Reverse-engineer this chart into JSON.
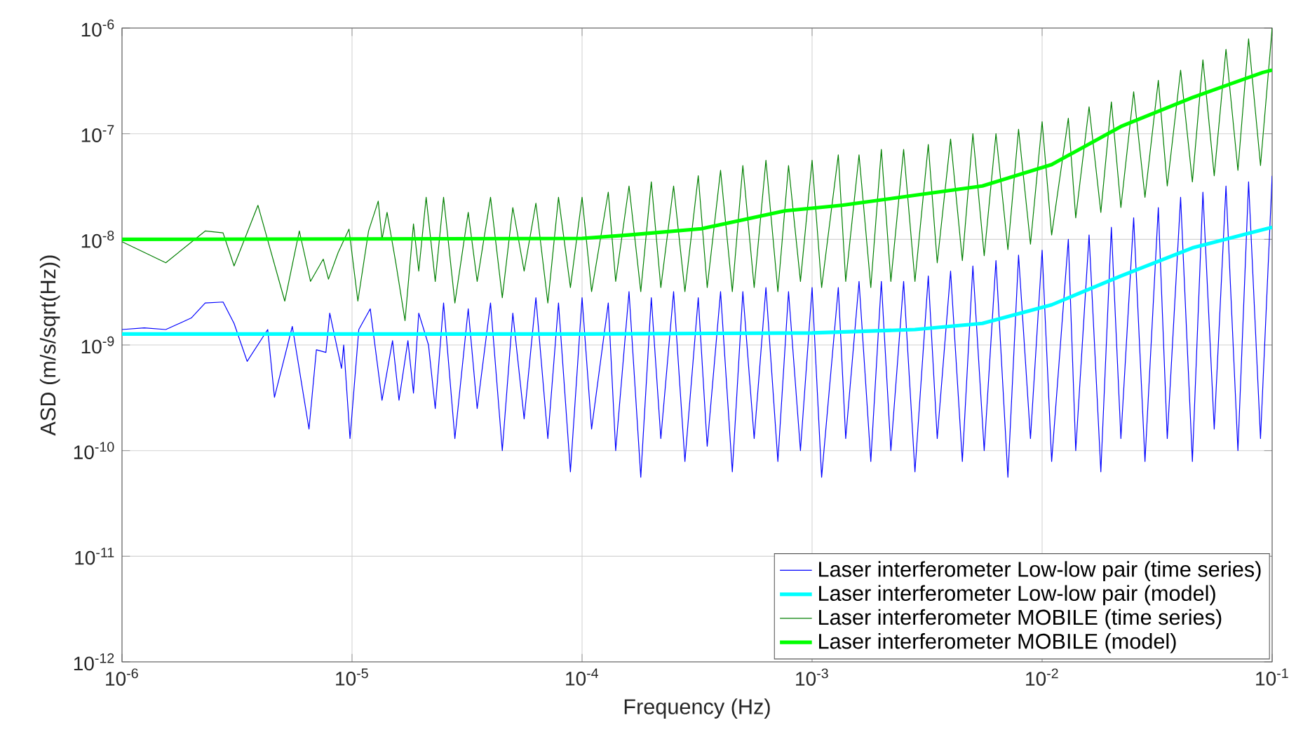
{
  "chart_data": {
    "type": "line",
    "xlabel": "Frequency (Hz)",
    "ylabel": "ASD (m/s/sqrt(Hz))",
    "log": "xy",
    "grid": true,
    "legend": "bottom right",
    "xlim": [
      1e-06,
      0.1
    ],
    "ylim": [
      1e-12,
      1e-06
    ],
    "xticks": [
      {
        "value": 1e-06,
        "label": "10$^{-6}$"
      },
      {
        "value": 1e-05,
        "label": "10$^{-5}$"
      },
      {
        "value": 0.0001,
        "label": "10$^{-4}$"
      },
      {
        "value": 0.001,
        "label": "10$^{-3}$"
      },
      {
        "value": 0.01,
        "label": "10$^{-2}$"
      },
      {
        "value": 0.1,
        "label": "10$^{-1}$"
      }
    ],
    "yticks": [
      {
        "value": 1e-12,
        "label": "10$^{-12}$"
      },
      {
        "value": 1e-11,
        "label": "10$^{-11}$"
      },
      {
        "value": 1e-10,
        "label": "10$^{-10}$"
      },
      {
        "value": 1e-09,
        "label": "10$^{-9}$"
      },
      {
        "value": 1e-08,
        "label": "10$^{-8}$"
      },
      {
        "value": 1e-07,
        "label": "10$^{-7}$"
      },
      {
        "value": 1e-06,
        "label": "10$^{-6}$"
      }
    ],
    "series": [
      {
        "name": "Laser interferometer Low-low pair (time series)",
        "color": "#0000ff",
        "x": [
          1e-06,
          1.25e-06,
          1.55e-06,
          2e-06,
          2.3e-06,
          2.75e-06,
          3.07e-06,
          3.5e-06,
          4.3e-06,
          4.6e-06,
          5.5e-06,
          6.5e-06,
          7e-06,
          7.7e-06,
          8e-06,
          9e-06,
          9.2e-06,
          9.8e-06,
          1.07e-05,
          1.2e-05,
          1.35e-05,
          1.5e-05,
          1.6e-05,
          1.75e-05,
          1.85e-05,
          1.95e-05,
          2.15e-05,
          2.3e-05,
          2.5e-05,
          2.8e-05,
          3.2e-05,
          3.5e-05,
          4e-05,
          4.5e-05,
          5e-05,
          5.6e-05,
          6.3e-05,
          7.1e-05,
          7.9e-05,
          8.9e-05,
          0.0001,
          0.00011,
          0.00013,
          0.00014,
          0.00016,
          0.00018,
          0.0002,
          0.00022,
          0.00025,
          0.00028,
          0.00032,
          0.00035,
          0.0004,
          0.00045,
          0.0005,
          0.00056,
          0.00063,
          0.00071,
          0.00079,
          0.00089,
          0.001,
          0.0011,
          0.0013,
          0.0014,
          0.0016,
          0.0018,
          0.002,
          0.0022,
          0.0025,
          0.0028,
          0.0032,
          0.0035,
          0.004,
          0.0045,
          0.005,
          0.0056,
          0.0063,
          0.0071,
          0.0079,
          0.0089,
          0.01,
          0.011,
          0.013,
          0.014,
          0.016,
          0.018,
          0.02,
          0.022,
          0.025,
          0.028,
          0.032,
          0.035,
          0.04,
          0.045,
          0.05,
          0.056,
          0.063,
          0.071,
          0.079,
          0.089,
          0.1
        ],
        "values": [
          1.4e-09,
          1.45e-09,
          1.4e-09,
          1.8e-09,
          2.5e-09,
          2.55e-09,
          1.6e-09,
          7e-10,
          1.4e-09,
          3.2e-10,
          1.5e-09,
          1.6e-10,
          9e-10,
          8.5e-10,
          2e-09,
          6e-10,
          1e-09,
          1.3e-10,
          1.4e-09,
          2.2e-09,
          3e-10,
          1.1e-09,
          3e-10,
          1.1e-09,
          3.5e-10,
          2e-09,
          1e-09,
          2.5e-10,
          2.5e-09,
          1.3e-10,
          2.2e-09,
          2.5e-10,
          2.5e-09,
          1e-10,
          2e-09,
          2e-10,
          2.8e-09,
          1.3e-10,
          2.5e-09,
          6.3e-11,
          2.8e-09,
          1.6e-10,
          2.5e-09,
          1e-10,
          3.2e-09,
          5.6e-11,
          2.8e-09,
          1.3e-10,
          3.2e-09,
          7.9e-11,
          2.8e-09,
          1.1e-10,
          3.2e-09,
          6.3e-11,
          3.2e-09,
          1.3e-10,
          3.5e-09,
          7.9e-11,
          3.2e-09,
          1e-10,
          3.5e-09,
          5.6e-11,
          3.5e-09,
          1.3e-10,
          4e-09,
          7.9e-11,
          4e-09,
          1e-10,
          4e-09,
          6.3e-11,
          4.5e-09,
          1.3e-10,
          5e-09,
          7.9e-11,
          5.6e-09,
          1e-10,
          6.3e-09,
          5.6e-11,
          7.1e-09,
          1.3e-10,
          7.9e-09,
          7.9e-11,
          1e-08,
          1e-10,
          1.1e-08,
          6.3e-11,
          1.3e-08,
          1.3e-10,
          1.6e-08,
          7.9e-11,
          2e-08,
          1.3e-10,
          2.5e-08,
          7.9e-11,
          2.8e-08,
          1.6e-10,
          3.2e-08,
          1e-10,
          3.5e-08,
          1.3e-10,
          4e-08
        ]
      },
      {
        "name": "Laser interferometer Low-low pair (model)",
        "color": "#00ffff",
        "x": [
          1e-06,
          0.0001,
          0.001,
          0.0028,
          0.0055,
          0.011,
          0.022,
          0.045,
          0.1
        ],
        "values": [
          1.27e-09,
          1.27e-09,
          1.3e-09,
          1.4e-09,
          1.6e-09,
          2.4e-09,
          4.5e-09,
          8.3e-09,
          1.3e-08
        ]
      },
      {
        "name": "Laser interferometer MOBILE (time series)",
        "color": "#007f00",
        "x": [
          1e-06,
          1.55e-06,
          2.3e-06,
          2.75e-06,
          3.07e-06,
          3.9e-06,
          5.1e-06,
          5.9e-06,
          6.6e-06,
          7.5e-06,
          7.9e-06,
          8.7e-06,
          9.7e-06,
          1.06e-05,
          1.18e-05,
          1.3e-05,
          1.35e-05,
          1.42e-05,
          1.55e-05,
          1.7e-05,
          1.85e-05,
          1.95e-05,
          2.1e-05,
          2.3e-05,
          2.5e-05,
          2.8e-05,
          3.2e-05,
          3.5e-05,
          4e-05,
          4.5e-05,
          5e-05,
          5.6e-05,
          6.3e-05,
          7.1e-05,
          7.9e-05,
          8.9e-05,
          0.0001,
          0.00011,
          0.00013,
          0.00014,
          0.00016,
          0.00018,
          0.0002,
          0.00022,
          0.00025,
          0.00028,
          0.00032,
          0.00035,
          0.0004,
          0.00045,
          0.0005,
          0.00056,
          0.00063,
          0.00071,
          0.00079,
          0.00089,
          0.001,
          0.0011,
          0.0013,
          0.0014,
          0.0016,
          0.0018,
          0.002,
          0.0022,
          0.0025,
          0.0028,
          0.0032,
          0.0035,
          0.004,
          0.0045,
          0.005,
          0.0056,
          0.0063,
          0.0071,
          0.0079,
          0.0089,
          0.01,
          0.011,
          0.013,
          0.014,
          0.016,
          0.018,
          0.02,
          0.022,
          0.025,
          0.028,
          0.032,
          0.035,
          0.04,
          0.045,
          0.05,
          0.056,
          0.063,
          0.071,
          0.079,
          0.089,
          0.1
        ],
        "values": [
          9.5e-09,
          6e-09,
          1.2e-08,
          1.15e-08,
          5.6e-09,
          2.1e-08,
          2.6e-09,
          1.2e-08,
          4e-09,
          6.5e-09,
          4.2e-09,
          7.5e-09,
          1.25e-08,
          2.6e-09,
          1.2e-08,
          2.3e-08,
          1e-08,
          1.8e-08,
          6e-09,
          1.7e-09,
          1.4e-08,
          5e-09,
          2.5e-08,
          4e-09,
          2.5e-08,
          2.5e-09,
          1.8e-08,
          4e-09,
          2.5e-08,
          2.8e-09,
          2e-08,
          5e-09,
          2.2e-08,
          2.5e-09,
          2.5e-08,
          3.5e-09,
          2.5e-08,
          3.2e-09,
          2.8e-08,
          4e-09,
          3.2e-08,
          3.2e-09,
          3.5e-08,
          3.5e-09,
          3.2e-08,
          3.2e-09,
          4e-08,
          3.5e-09,
          4.5e-08,
          3.2e-09,
          5e-08,
          3.5e-09,
          5.6e-08,
          3.2e-09,
          5e-08,
          4e-09,
          5.6e-08,
          3.5e-09,
          6.3e-08,
          4e-09,
          6.3e-08,
          3.5e-09,
          7.1e-08,
          4e-09,
          7.1e-08,
          4e-09,
          7.9e-08,
          6e-09,
          8.9e-08,
          6.3e-09,
          1e-07,
          7e-09,
          1e-07,
          8e-09,
          1.1e-07,
          9e-09,
          1.3e-07,
          1.1e-08,
          1.4e-07,
          1.6e-08,
          1.8e-07,
          1.8e-08,
          2e-07,
          2e-08,
          2.5e-07,
          2.5e-08,
          3.2e-07,
          3.2e-08,
          4e-07,
          3.5e-08,
          5e-07,
          4e-08,
          6.3e-07,
          4.5e-08,
          7.9e-07,
          5e-08,
          1e-06
        ]
      },
      {
        "name": "Laser interferometer MOBILE (model)",
        "color": "#00ff00",
        "x": [
          1e-06,
          0.0001,
          0.00016,
          0.00033,
          0.00076,
          0.00135,
          0.0055,
          0.011,
          0.022,
          0.045,
          0.091,
          0.1
        ],
        "values": [
          1e-08,
          1.02e-08,
          1.1e-08,
          1.26e-08,
          1.86e-08,
          2.1e-08,
          3.2e-08,
          5.1e-08,
          1.17e-07,
          2.2e-07,
          3.8e-07,
          4e-07
        ]
      }
    ]
  }
}
